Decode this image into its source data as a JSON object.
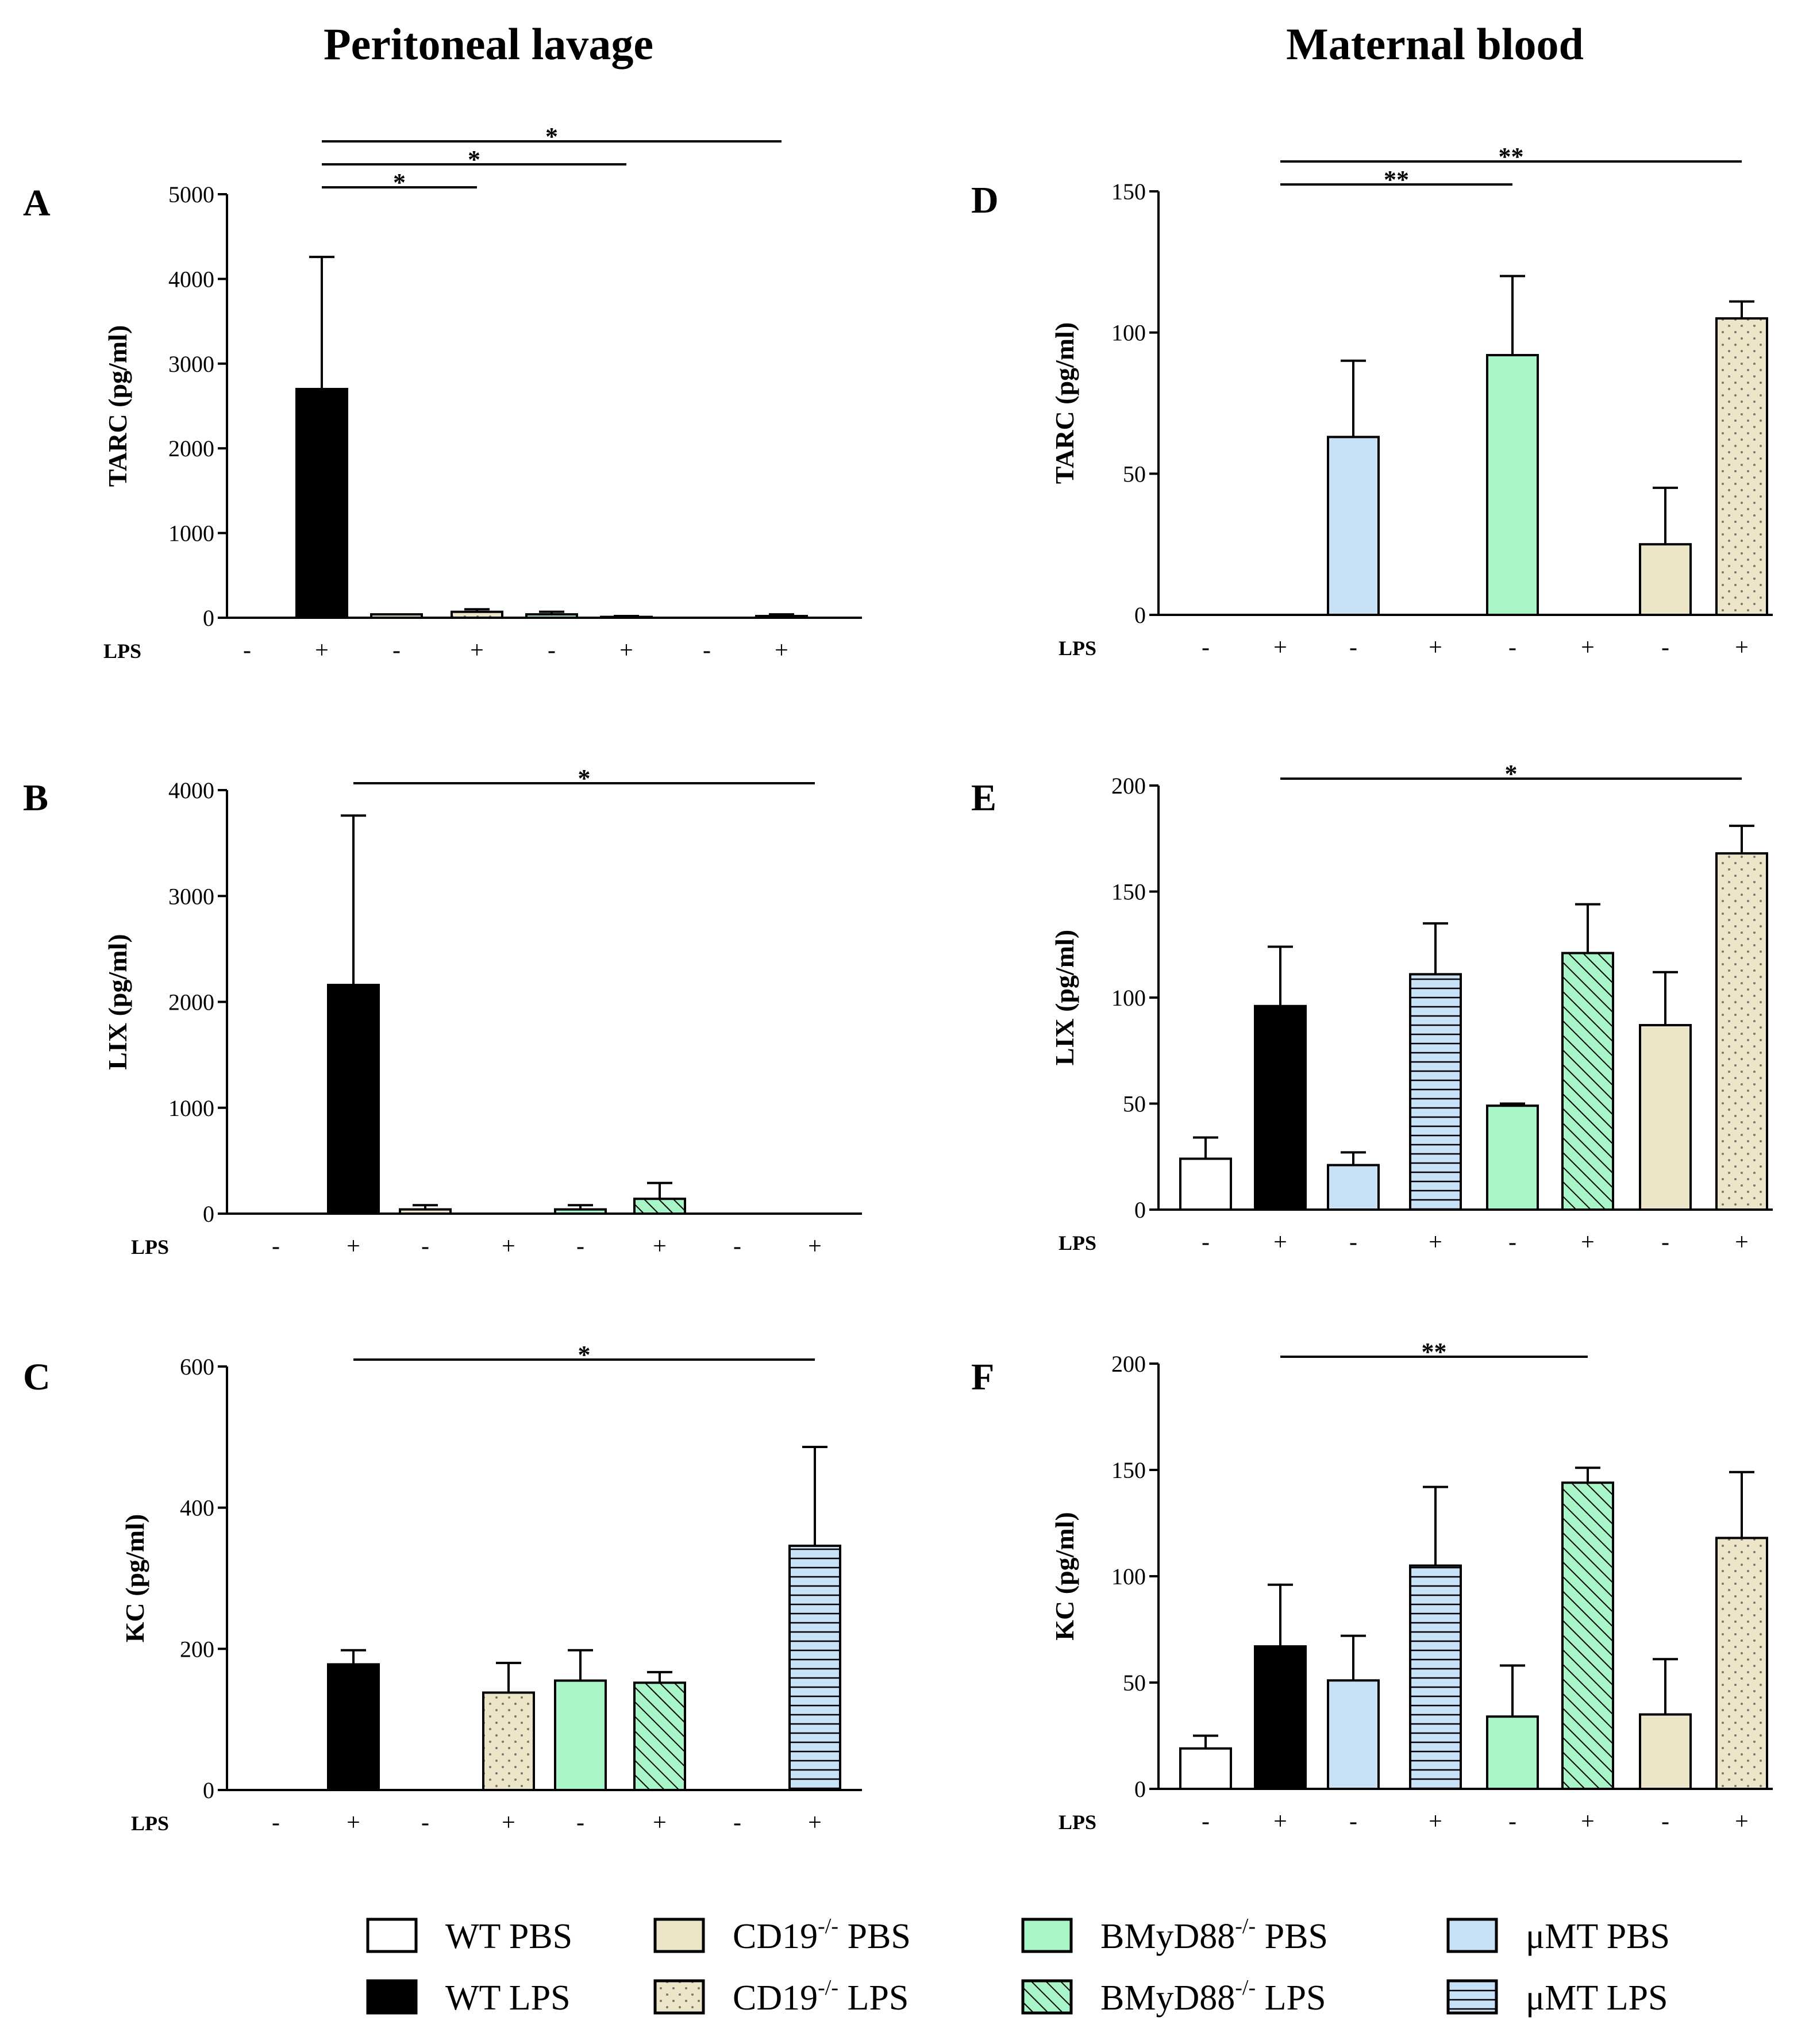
{
  "column_titles": [
    "Peritoneal lavage",
    "Maternal blood"
  ],
  "groups": [
    {
      "id": "wt_pbs",
      "label": "WT PBS",
      "sup": "",
      "rest": "",
      "fill": "#ffffff",
      "pattern": "none"
    },
    {
      "id": "wt_lps",
      "label": "WT LPS",
      "sup": "",
      "rest": "",
      "fill": "#000000",
      "pattern": "none"
    },
    {
      "id": "mmt_pbs",
      "label": "μMT PBS",
      "sup": "",
      "rest": "",
      "fill": "#c7e1f7",
      "pattern": "none"
    },
    {
      "id": "mmt_lps",
      "label": "μMT LPS",
      "sup": "",
      "rest": "",
      "fill": "#c7e1f7",
      "pattern": "hlines"
    },
    {
      "id": "bmy_pbs",
      "label": "BMyD88",
      "sup": "-/-",
      "rest": "PBS",
      "fill": "#a8f5c8",
      "pattern": "none"
    },
    {
      "id": "bmy_lps",
      "label": "BMyD88",
      "sup": "-/-",
      "rest": "LPS",
      "fill": "#a8f5c8",
      "pattern": "diag"
    },
    {
      "id": "cd19_pbs",
      "label": "CD19",
      "sup": "-/-",
      "rest": "PBS",
      "fill": "#ede5c8",
      "pattern": "none"
    },
    {
      "id": "cd19_lps",
      "label": "CD19",
      "sup": "-/-",
      "rest": "LPS",
      "fill": "#ede5c8",
      "pattern": "dots"
    }
  ],
  "lps_row": {
    "label": "LPS",
    "signs": [
      "-",
      "+",
      "-",
      "+",
      "-",
      "+",
      "-",
      "+"
    ]
  },
  "chart_data": [
    {
      "panel": "A",
      "type": "bar",
      "column": 0,
      "ylabel": "TARC (pg/ml)",
      "ylim": [
        0,
        5000
      ],
      "yticks": [
        0,
        1000,
        2000,
        3000,
        4000,
        5000
      ],
      "categories": [
        "wt_pbs",
        "wt_lps",
        "cd19_pbs",
        "cd19_lps",
        "bmy_pbs",
        "bmy_lps",
        "mmt_pbs",
        "mmt_lps"
      ],
      "values": [
        0,
        2700,
        40,
        70,
        40,
        10,
        0,
        20
      ],
      "errors": [
        0,
        1560,
        0,
        30,
        30,
        10,
        0,
        20
      ],
      "significance": [
        {
          "from": 1,
          "to": 3,
          "label": "*"
        },
        {
          "from": 1,
          "to": 5,
          "label": "*"
        },
        {
          "from": 1,
          "to": 7,
          "label": "*"
        }
      ]
    },
    {
      "panel": "B",
      "type": "bar",
      "column": 0,
      "ylabel": "LIX (pg/ml)",
      "ylim": [
        0,
        4000
      ],
      "yticks": [
        0,
        1000,
        2000,
        3000,
        4000
      ],
      "categories": [
        "wt_pbs",
        "wt_lps",
        "cd19_pbs",
        "cd19_lps",
        "bmy_pbs",
        "bmy_lps",
        "mmt_pbs",
        "mmt_lps"
      ],
      "values": [
        0,
        2160,
        40,
        0,
        40,
        140,
        0,
        0
      ],
      "errors": [
        0,
        1600,
        40,
        0,
        40,
        150,
        0,
        0
      ],
      "significance": [
        {
          "from": 1,
          "to": 7,
          "label": "*"
        }
      ]
    },
    {
      "panel": "C",
      "type": "bar",
      "column": 0,
      "ylabel": "KC (pg/ml)",
      "ylim": [
        0,
        600
      ],
      "yticks": [
        0,
        200,
        400,
        600
      ],
      "categories": [
        "wt_pbs",
        "wt_lps",
        "cd19_pbs",
        "cd19_lps",
        "bmy_pbs",
        "bmy_lps",
        "mmt_pbs",
        "mmt_lps"
      ],
      "values": [
        0,
        178,
        0,
        138,
        155,
        152,
        0,
        346
      ],
      "errors": [
        0,
        20,
        0,
        42,
        43,
        15,
        0,
        140
      ],
      "significance": [
        {
          "from": 1,
          "to": 7,
          "label": "*"
        }
      ]
    },
    {
      "panel": "D",
      "type": "bar",
      "column": 1,
      "ylabel": "TARC (pg/ml)",
      "ylim": [
        0,
        150
      ],
      "yticks": [
        0,
        50,
        100,
        150
      ],
      "categories": [
        "wt_pbs",
        "wt_lps",
        "mmt_pbs",
        "mmt_lps",
        "bmy_pbs",
        "bmy_lps",
        "cd19_pbs",
        "cd19_lps"
      ],
      "values": [
        0,
        0,
        63,
        0,
        92,
        0,
        25,
        105
      ],
      "errors": [
        0,
        0,
        27,
        0,
        28,
        0,
        20,
        6
      ],
      "significance": [
        {
          "from": 1,
          "to": 4,
          "label": "**"
        },
        {
          "from": 1,
          "to": 7,
          "label": "**"
        }
      ]
    },
    {
      "panel": "E",
      "type": "bar",
      "column": 1,
      "ylabel": "LIX (pg/ml)",
      "ylim": [
        0,
        200
      ],
      "yticks": [
        0,
        50,
        100,
        150,
        200
      ],
      "categories": [
        "wt_pbs",
        "wt_lps",
        "mmt_pbs",
        "mmt_lps",
        "bmy_pbs",
        "bmy_lps",
        "cd19_pbs",
        "cd19_lps"
      ],
      "values": [
        24,
        96,
        21,
        111,
        49,
        121,
        87,
        168
      ],
      "errors": [
        10,
        28,
        6,
        24,
        1,
        23,
        25,
        13
      ],
      "significance": [
        {
          "from": 1,
          "to": 7,
          "label": "*"
        }
      ]
    },
    {
      "panel": "F",
      "type": "bar",
      "column": 1,
      "ylabel": "KC (pg/ml)",
      "ylim": [
        0,
        200
      ],
      "yticks": [
        0,
        50,
        100,
        150,
        200
      ],
      "categories": [
        "wt_pbs",
        "wt_lps",
        "mmt_pbs",
        "mmt_lps",
        "bmy_pbs",
        "bmy_lps",
        "cd19_pbs",
        "cd19_lps"
      ],
      "values": [
        19,
        67,
        51,
        105,
        34,
        144,
        35,
        118
      ],
      "errors": [
        6,
        29,
        21,
        37,
        24,
        7,
        26,
        31
      ],
      "significance": [
        {
          "from": 1,
          "to": 5,
          "label": "**"
        }
      ]
    }
  ],
  "legend_order": [
    "wt_pbs",
    "cd19_pbs",
    "bmy_pbs",
    "mmt_pbs",
    "wt_lps",
    "cd19_lps",
    "bmy_lps",
    "mmt_lps"
  ]
}
